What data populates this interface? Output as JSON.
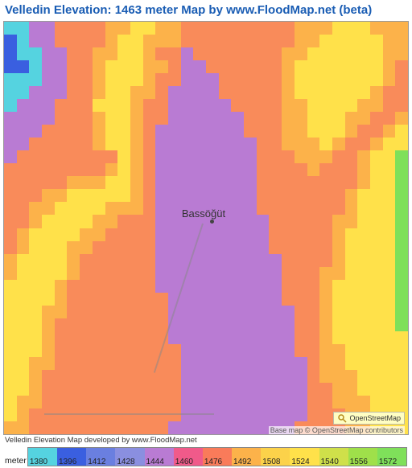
{
  "title": "Velledin Elevation: 1463 meter Map by www.FloodMap.net (beta)",
  "map": {
    "type": "heatmap",
    "grid_size": 32,
    "place_label": "Bassöğüt",
    "attribution_box": "OpenStreetMap",
    "basemap_credit": "Base map © OpenStreetMap contributors",
    "dev_credit": "Velledin Elevation Map developed by www.FloodMap.net",
    "palette": {
      "lowest": "#3a5fe0",
      "low": "#55d3e0",
      "valley": "#b97bd3",
      "slope": "#f98b5a",
      "mid": "#fcb24a",
      "high": "#ffe14a",
      "top": "#7fe05a"
    },
    "rows": [
      "llvvssssmmhhmmsssssssssmmmhhhmmm",
      "LlvvssssmhhmmmsssssssssmmhhhhHmm",
      "Lllvvssmmhhmssvsssssssmmhhhhhhmm",
      "LLlvvssmhhhmmsvvssssssmhhhHHhhms",
      "lllvvssmhhhmssvvvsssssmhhHHHhhms",
      "llvvvssmhhmmsvvvvsssssmhhhhhhmss",
      "lvvvssshhhmssvvvvvssssmmhhhhmmss",
      "vvvvsssmhhmssvvvvvvsssmmhhhmmssm",
      "vvvssssmhhmsvvvvvvvsssmmhhhmssmh",
      "vvsssssmhhmsvvvvvvvvssmmmhmssmhH",
      "vsssssssshmsvvvvvvvvsssmmmssmhHT",
      "ssssssssmhmsvvvvvvvvssssmsssmhHT",
      "sssssmmmhhmsvvvvvvvvssssssssmhHT",
      "sssmmhhhhhmsvvvvvvvvsssssssmhhHT",
      "ssmmhhhhmmmsvvvvvvvvsssssssmhhHT",
      "ssmhhhhmmsssvvvvvvvvvsssssmmhhHT",
      "smhhhhmmssssvvvvvvvvvsssssmhhhHT",
      "smhhhmmsssssvvvvvvvvvsssssmhhhHT",
      "mhhhhmssssssvvvvvvvvvvssssmhhhHT",
      "mhhhhmssssssvvvvvvvvvvsssmmhhhHT",
      "hhhhmsssssssvvvvvvvvvvsssmhhhhHT",
      "hhhhmssssssssvvvvvvvvvsssmhhhhHT",
      "hhhmmssssssssvvvvvvvvvvssmhhhhHT",
      "hhhmsssssssssvvvvvvvvvvssmhhhhHT",
      "hhhmsssssssssvvvvvvvvvvssmhhhhhH",
      "hhhmssssssssssvvvvvvvvvssmmhhhhh",
      "hhmmssssssssssvvvvvvvvvvsmmhhhhh",
      "hhmsssssssssssvvvvvvvvvvsmmmhhhh",
      "hhmsssssssssssvvvvvvvvvvssmmhhhh",
      "hmmsssssssssssvvvvvvvvvvssmmmhhh",
      "hmssssssssssssvvvvvvvvvvsssmmhhh",
      "mmsssssssssssvvvvvvvvvvssssmmhhh"
    ]
  },
  "legend": {
    "unit_label": "meter",
    "swatches": [
      {
        "color": "#55d3e0",
        "tick": "1380"
      },
      {
        "color": "#3a5fe0",
        "tick": "1396"
      },
      {
        "color": "#6a7fe0",
        "tick": "1412"
      },
      {
        "color": "#8a8fe0",
        "tick": "1428"
      },
      {
        "color": "#b97bd3",
        "tick": "1444"
      },
      {
        "color": "#f05a8a",
        "tick": "1460"
      },
      {
        "color": "#f97b5a",
        "tick": "1476"
      },
      {
        "color": "#fcb24a",
        "tick": "1492"
      },
      {
        "color": "#fcd24a",
        "tick": "1508"
      },
      {
        "color": "#ffe14a",
        "tick": "1524"
      },
      {
        "color": "#cfe04a",
        "tick": "1540"
      },
      {
        "color": "#9fe04a",
        "tick": "1556"
      },
      {
        "color": "#7fe05a",
        "tick": "1572"
      }
    ]
  }
}
